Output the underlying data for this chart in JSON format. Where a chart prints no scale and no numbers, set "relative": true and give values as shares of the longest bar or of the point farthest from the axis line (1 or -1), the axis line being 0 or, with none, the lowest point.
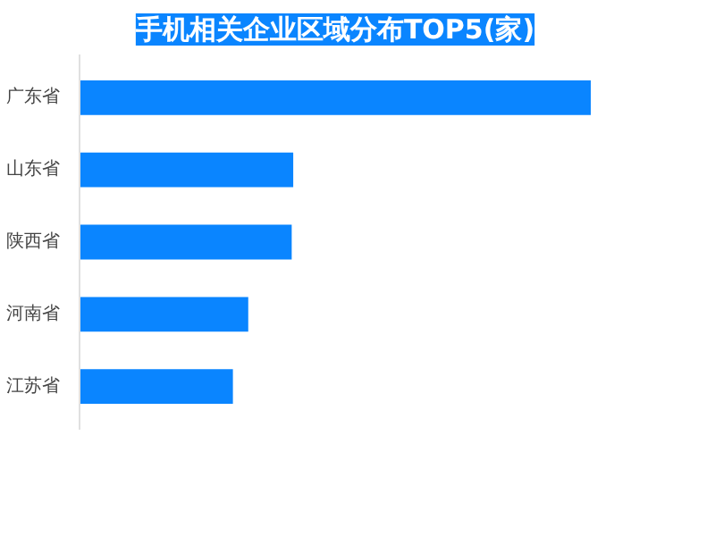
{
  "chart_data": {
    "type": "bar",
    "orientation": "horizontal",
    "relative": true,
    "title": "手机相关企业区域分布TOP5(家)",
    "categories": [
      "广东省",
      "山东省",
      "陕西省",
      "河南省",
      "江苏省"
    ],
    "values": [
      1,
      0.418,
      0.415,
      0.33,
      0.3
    ],
    "color": "#0a85ff",
    "grid": false
  }
}
